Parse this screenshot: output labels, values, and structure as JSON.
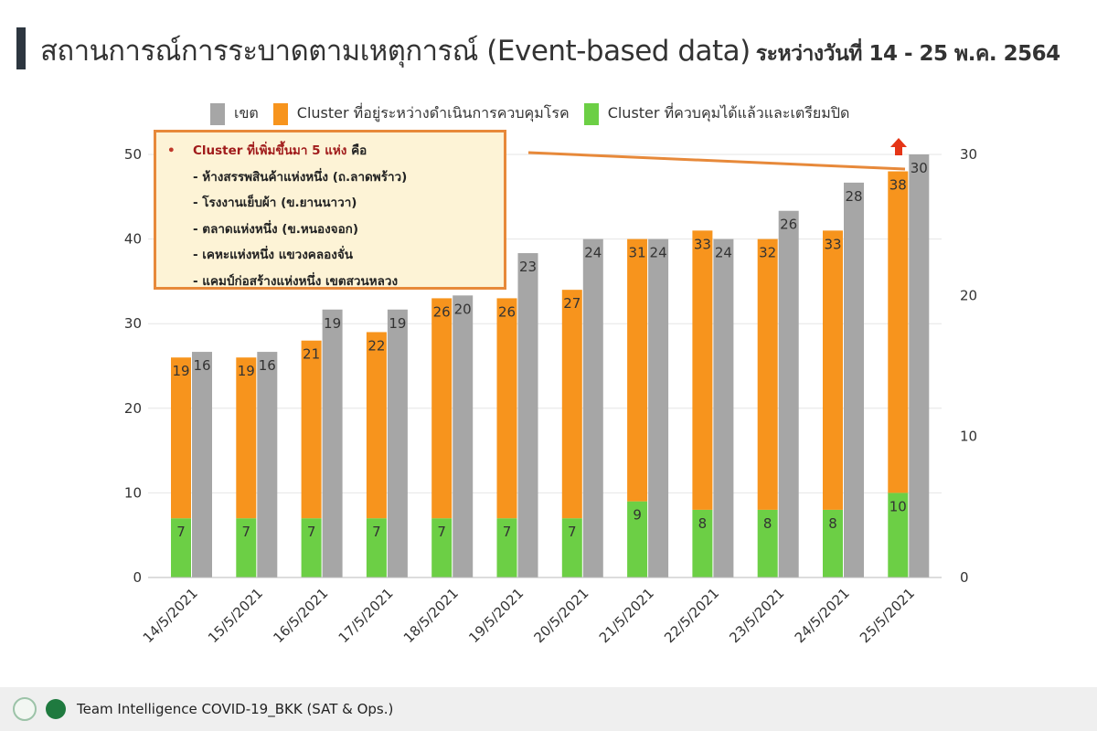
{
  "header": {
    "title": "สถานการณ์การระบาดตามเหตุการณ์ (Event-based data)",
    "subtitle": "ระหว่างวันที่ 14 - 25 พ.ค. 2564"
  },
  "annotation": {
    "heading": "Cluster ที่เพิ่มขึ้นมา 5 แห่ง",
    "heading_suffix": "คือ",
    "items": [
      "- ห้างสรรพสินค้าแห่งหนึ่ง (ถ.ลาดพร้าว)",
      "- โรงงานเย็บผ้า (ข.ยานนาวา)",
      "- ตลาดแห่งหนึ่ง (ข.หนองจอก)",
      "- เคหะแห่งหนึ่ง แขวงคลองจั่น",
      "- แคมป์ก่อสร้างแห่งหนึ่ง เขตสวนหลวง"
    ]
  },
  "footer": {
    "text": "Team Intelligence COVID-19_BKK (SAT & Ops.)"
  },
  "chart_data": {
    "type": "bar",
    "categories": [
      "14/5/2021",
      "15/5/2021",
      "16/5/2021",
      "17/5/2021",
      "18/5/2021",
      "19/5/2021",
      "20/5/2021",
      "21/5/2021",
      "22/5/2021",
      "23/5/2021",
      "24/5/2021",
      "25/5/2021"
    ],
    "series": [
      {
        "name": "Cluster ที่ควบคุมได้แล้วและเตรียมปิด",
        "axis": "left",
        "stack": "a",
        "color": "#6ccf45",
        "values": [
          7,
          7,
          7,
          7,
          7,
          7,
          7,
          9,
          8,
          8,
          8,
          10
        ]
      },
      {
        "name": "Cluster ที่อยู่ระหว่างดำเนินการควบคุมโรค",
        "axis": "left",
        "stack": "a",
        "color": "#f7941d",
        "values": [
          19,
          19,
          21,
          22,
          26,
          26,
          27,
          31,
          33,
          32,
          33,
          38
        ]
      },
      {
        "name": "เขต",
        "axis": "right",
        "stack": "b",
        "color": "#a6a6a6",
        "values": [
          16,
          16,
          19,
          19,
          20,
          23,
          24,
          24,
          24,
          26,
          28,
          30
        ]
      }
    ],
    "legend_order": [
      2,
      1,
      0
    ],
    "left_axis": {
      "ylim": [
        0,
        50
      ],
      "ticks": [
        "0",
        "10",
        "20",
        "30",
        "40",
        "50"
      ]
    },
    "right_axis": {
      "ylim": [
        0,
        30
      ],
      "ticks": [
        "0",
        "10",
        "20",
        "30"
      ]
    },
    "legend": "top",
    "trend_arrow_color": "#e53517"
  }
}
